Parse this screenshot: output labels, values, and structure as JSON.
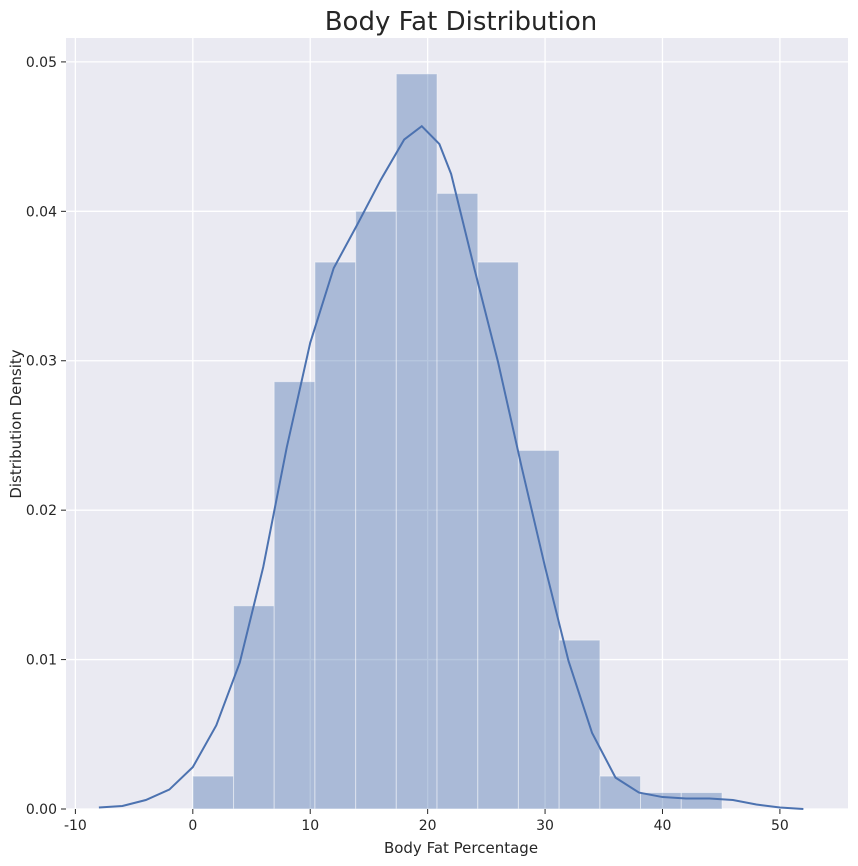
{
  "chart_data": {
    "type": "histogram",
    "title": "Body Fat Distribution",
    "xlabel": "Body Fat Percentage",
    "ylabel": "Distribution Density",
    "xlim": [
      -10.8,
      55.8
    ],
    "ylim": [
      0,
      0.0516
    ],
    "xticks": [
      -10,
      0,
      10,
      20,
      30,
      40,
      50
    ],
    "yticks": [
      0.0,
      0.01,
      0.02,
      0.03,
      0.04,
      0.05
    ],
    "ytick_labels": [
      "0.00",
      "0.01",
      "0.02",
      "0.03",
      "0.04",
      "0.05"
    ],
    "grid": true,
    "bar_color": "#4c72b0",
    "line_color": "#4c72b0",
    "background": "#eaeaf2",
    "bin_edges": [
      0.0,
      3.47,
      6.93,
      10.4,
      13.87,
      17.33,
      20.8,
      24.27,
      27.73,
      31.2,
      34.67,
      38.13,
      41.6,
      45.07
    ],
    "bin_heights": [
      0.0022,
      0.0136,
      0.0286,
      0.0366,
      0.04,
      0.0492,
      0.0412,
      0.0366,
      0.024,
      0.0113,
      0.0022,
      0.0011,
      0.0011
    ],
    "kde": {
      "x": [
        -8,
        -6,
        -4,
        -2,
        0,
        2,
        4,
        6,
        8,
        10,
        12,
        14,
        16,
        18,
        19.5,
        21,
        22,
        24,
        26,
        28,
        30,
        32,
        34,
        36,
        38,
        40,
        42,
        44,
        46,
        48,
        50,
        52
      ],
      "y": [
        0.0001,
        0.0002,
        0.0006,
        0.0013,
        0.0028,
        0.0056,
        0.0098,
        0.0162,
        0.0242,
        0.0312,
        0.0362,
        0.0391,
        0.0421,
        0.0448,
        0.0457,
        0.0445,
        0.0425,
        0.0361,
        0.0299,
        0.0229,
        0.0162,
        0.0099,
        0.0051,
        0.0021,
        0.0011,
        0.0008,
        0.0007,
        0.0007,
        0.0006,
        0.0003,
        0.0001,
        0.0
      ]
    }
  }
}
